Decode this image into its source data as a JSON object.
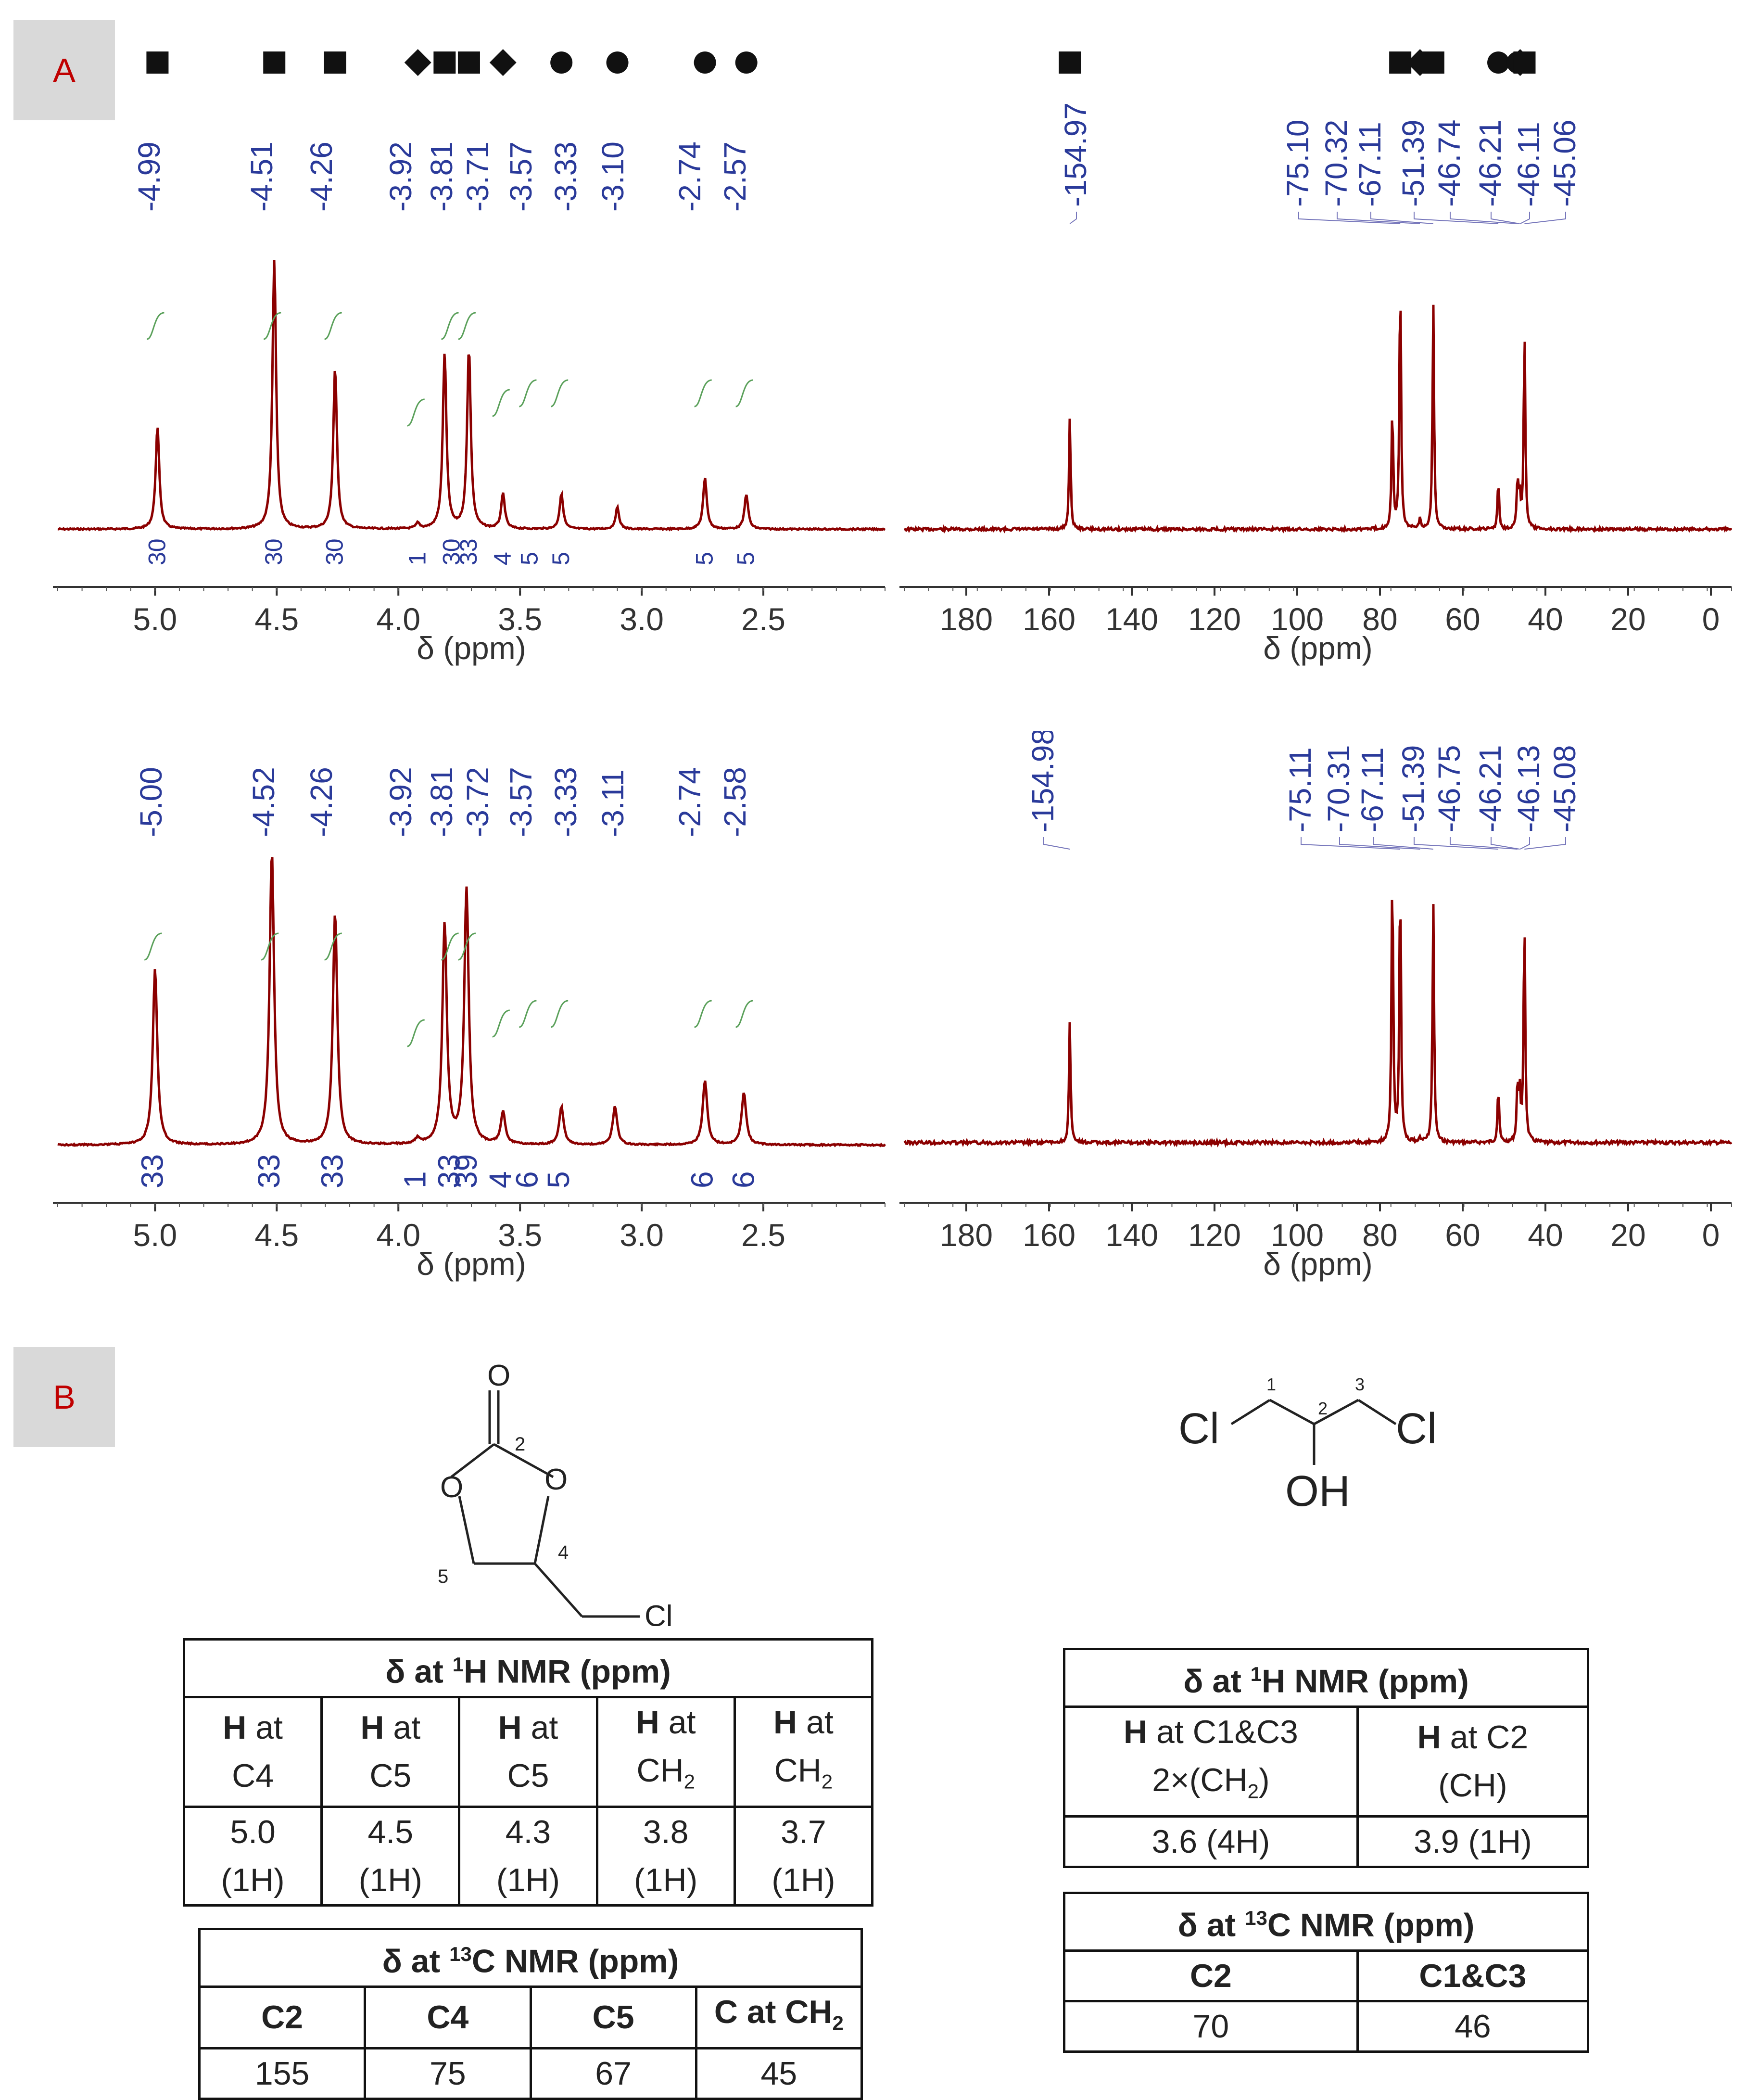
{
  "panels": {
    "a": "A",
    "b": "B"
  },
  "chart_data": [
    {
      "type": "line",
      "xlabel": "δ (ppm)",
      "xlim": [
        5.4,
        2.0
      ],
      "xticks": [
        "5.0",
        "4.5",
        "4.0",
        "3.5",
        "3.0",
        "2.5"
      ],
      "peak_labels": [
        "4.99",
        "4.51",
        "4.26",
        "3.92",
        "3.81",
        "3.71",
        "3.57",
        "3.33",
        "3.10",
        "2.74",
        "2.57"
      ],
      "markers": [
        {
          "ppm": 4.99,
          "shape": "square"
        },
        {
          "ppm": 4.51,
          "shape": "square"
        },
        {
          "ppm": 4.26,
          "shape": "square"
        },
        {
          "ppm": 3.92,
          "shape": "diamond"
        },
        {
          "ppm": 3.81,
          "shape": "square"
        },
        {
          "ppm": 3.71,
          "shape": "square"
        },
        {
          "ppm": 3.57,
          "shape": "diamond"
        },
        {
          "ppm": 3.33,
          "shape": "circle"
        },
        {
          "ppm": 3.1,
          "shape": "circle"
        },
        {
          "ppm": 2.74,
          "shape": "circle"
        },
        {
          "ppm": 2.57,
          "shape": "circle"
        }
      ],
      "integrals": [
        {
          "ppm": 4.99,
          "value": "30"
        },
        {
          "ppm": 4.51,
          "value": "30"
        },
        {
          "ppm": 4.26,
          "value": "30"
        },
        {
          "ppm": 3.92,
          "value": "1"
        },
        {
          "ppm": 3.78,
          "value": "30"
        },
        {
          "ppm": 3.71,
          "value": "33"
        },
        {
          "ppm": 3.57,
          "value": "4"
        },
        {
          "ppm": 3.46,
          "value": "5"
        },
        {
          "ppm": 3.33,
          "value": "5"
        },
        {
          "ppm": 2.74,
          "value": "5"
        },
        {
          "ppm": 2.57,
          "value": "5"
        }
      ],
      "peaks": [
        {
          "ppm": 4.99,
          "height": 0.38
        },
        {
          "ppm": 4.51,
          "height": 1.0
        },
        {
          "ppm": 4.26,
          "height": 0.6
        },
        {
          "ppm": 3.92,
          "height": 0.02
        },
        {
          "ppm": 3.81,
          "height": 0.65
        },
        {
          "ppm": 3.71,
          "height": 0.67
        },
        {
          "ppm": 3.57,
          "height": 0.13
        },
        {
          "ppm": 3.33,
          "height": 0.13
        },
        {
          "ppm": 3.1,
          "height": 0.08
        },
        {
          "ppm": 2.74,
          "height": 0.19
        },
        {
          "ppm": 2.57,
          "height": 0.13
        }
      ]
    },
    {
      "type": "line",
      "xlabel": "δ (ppm)",
      "xlim": [
        195,
        -5
      ],
      "xticks": [
        "180",
        "160",
        "140",
        "120",
        "100",
        "80",
        "60",
        "40",
        "20",
        "0"
      ],
      "peak_labels": [
        "154.97",
        "75.10",
        "70.32",
        "67.11",
        "51.39",
        "46.74",
        "46.21",
        "46.11",
        "45.06"
      ],
      "markers": [
        {
          "ppm": 154.97,
          "shape": "square"
        },
        {
          "ppm": 75.1,
          "shape": "square"
        },
        {
          "ppm": 70.32,
          "shape": "diamond"
        },
        {
          "ppm": 67.11,
          "shape": "square"
        },
        {
          "ppm": 51.39,
          "shape": "circle"
        },
        {
          "ppm": 46.74,
          "shape": "circle"
        },
        {
          "ppm": 46.21,
          "shape": "circle"
        },
        {
          "ppm": 46.11,
          "shape": "diamond"
        },
        {
          "ppm": 45.06,
          "shape": "square"
        }
      ],
      "peaks": [
        {
          "ppm": 154.97,
          "height": 0.43
        },
        {
          "ppm": 75.1,
          "height": 1.0
        },
        {
          "ppm": 77.0,
          "height": 0.47
        },
        {
          "ppm": 70.32,
          "height": 0.04
        },
        {
          "ppm": 67.11,
          "height": 0.87
        },
        {
          "ppm": 51.39,
          "height": 0.19
        },
        {
          "ppm": 46.74,
          "height": 0.19
        },
        {
          "ppm": 46.21,
          "height": 0.12
        },
        {
          "ppm": 45.06,
          "height": 0.77
        }
      ]
    },
    {
      "type": "line",
      "xlabel": "δ (ppm)",
      "xlim": [
        5.4,
        2.0
      ],
      "xticks": [
        "5.0",
        "4.5",
        "4.0",
        "3.5",
        "3.0",
        "2.5"
      ],
      "peak_labels": [
        "5.00",
        "4.52",
        "4.26",
        "3.92",
        "3.81",
        "3.72",
        "3.57",
        "3.33",
        "3.11",
        "2.74",
        "2.58"
      ],
      "integrals": [
        {
          "ppm": 5.0,
          "value": "33"
        },
        {
          "ppm": 4.52,
          "value": "33"
        },
        {
          "ppm": 4.26,
          "value": "33"
        },
        {
          "ppm": 3.92,
          "value": "1"
        },
        {
          "ppm": 3.78,
          "value": "33"
        },
        {
          "ppm": 3.71,
          "value": "39"
        },
        {
          "ppm": 3.57,
          "value": "4"
        },
        {
          "ppm": 3.46,
          "value": "6"
        },
        {
          "ppm": 3.33,
          "value": "5"
        },
        {
          "ppm": 2.74,
          "value": "6"
        },
        {
          "ppm": 2.57,
          "value": "6"
        }
      ],
      "peaks": [
        {
          "ppm": 5.0,
          "height": 0.6
        },
        {
          "ppm": 4.52,
          "height": 1.0
        },
        {
          "ppm": 4.26,
          "height": 0.79
        },
        {
          "ppm": 3.92,
          "height": 0.02
        },
        {
          "ppm": 3.81,
          "height": 0.75
        },
        {
          "ppm": 3.72,
          "height": 0.87
        },
        {
          "ppm": 3.57,
          "height": 0.11
        },
        {
          "ppm": 3.33,
          "height": 0.13
        },
        {
          "ppm": 3.11,
          "height": 0.13
        },
        {
          "ppm": 2.74,
          "height": 0.22
        },
        {
          "ppm": 2.58,
          "height": 0.18
        }
      ]
    },
    {
      "type": "line",
      "xlabel": "δ (ppm)",
      "xlim": [
        195,
        -5
      ],
      "xticks": [
        "180",
        "160",
        "140",
        "120",
        "100",
        "80",
        "60",
        "40",
        "20",
        "0"
      ],
      "peak_labels": [
        "154.98",
        "75.11",
        "70.31",
        "67.11",
        "51.39",
        "46.75",
        "46.21",
        "46.13",
        "45.08"
      ],
      "peaks": [
        {
          "ppm": 154.98,
          "height": 0.43
        },
        {
          "ppm": 77.0,
          "height": 1.0
        },
        {
          "ppm": 75.11,
          "height": 0.98
        },
        {
          "ppm": 70.31,
          "height": 0.02
        },
        {
          "ppm": 67.11,
          "height": 0.86
        },
        {
          "ppm": 51.39,
          "height": 0.2
        },
        {
          "ppm": 46.75,
          "height": 0.2
        },
        {
          "ppm": 46.21,
          "height": 0.18
        },
        {
          "ppm": 45.08,
          "height": 0.82
        }
      ]
    }
  ],
  "molecules": {
    "left": {
      "atoms": [
        "O",
        "O",
        "O",
        "Cl"
      ],
      "numbers": [
        "2",
        "4",
        "5"
      ]
    },
    "right": {
      "atoms": [
        "Cl",
        "Cl",
        "OH"
      ],
      "numbers": [
        "1",
        "2",
        "3"
      ]
    }
  },
  "tables": {
    "left_h": {
      "title_pre": "δ at ",
      "title_sup": "1",
      "title_post": "H NMR (ppm)",
      "cols": [
        {
          "b": "H",
          "t": " at",
          "sub_pre": "C4",
          "sub": "",
          "val": "5.0",
          "n": "(1H)"
        },
        {
          "b": "H",
          "t": " at",
          "sub_pre": "C5",
          "sub": "",
          "val": "4.5",
          "n": "(1H)"
        },
        {
          "b": "H",
          "t": " at",
          "sub_pre": "C5",
          "sub": "",
          "val": "4.3",
          "n": "(1H)"
        },
        {
          "b": "H",
          "t": " at",
          "sub_pre": "CH",
          "sub": "2",
          "val": "3.8",
          "n": "(1H)"
        },
        {
          "b": "H",
          "t": " at",
          "sub_pre": "CH",
          "sub": "2",
          "val": "3.7",
          "n": "(1H)"
        }
      ]
    },
    "left_c": {
      "title_pre": "δ at ",
      "title_sup": "13",
      "title_post": "C NMR (ppm)",
      "headers": [
        "C2",
        "C4",
        "C5",
        "C at CH"
      ],
      "header_sub": "2",
      "values": [
        "155",
        "75",
        "67",
        "45"
      ]
    },
    "right_h": {
      "title_pre": "δ at ",
      "title_sup": "1",
      "title_post": "H NMR (ppm)",
      "h1_b": "H",
      "h1_t": " at C1&C3",
      "h1_line2_pre": "2×(CH",
      "h1_line2_sub": "2",
      "h1_line2_post": ")",
      "h2_b": "H",
      "h2_t": " at C2",
      "h2_line2": "(CH)",
      "values": [
        "3.6 (4H)",
        "3.9 (1H)"
      ]
    },
    "right_c": {
      "title_pre": "δ at ",
      "title_sup": "13",
      "title_post": "C NMR (ppm)",
      "headers": [
        "C2",
        "C1&C3"
      ],
      "values": [
        "70",
        "46"
      ]
    }
  }
}
